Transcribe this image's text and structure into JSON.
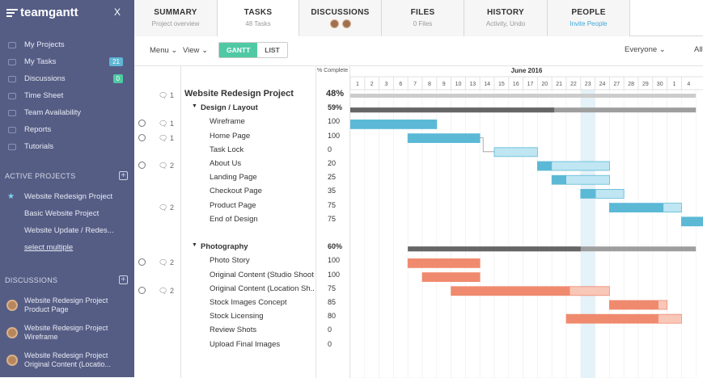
{
  "app": {
    "logo": "teamgantt",
    "close": "X"
  },
  "sidebar": {
    "nav": [
      {
        "label": "My Projects",
        "badge": ""
      },
      {
        "label": "My Tasks",
        "badge": "21"
      },
      {
        "label": "Discussions",
        "badge": "0"
      },
      {
        "label": "Time Sheet",
        "badge": ""
      },
      {
        "label": "Team Availability",
        "badge": ""
      },
      {
        "label": "Reports",
        "badge": ""
      },
      {
        "label": "Tutorials",
        "badge": ""
      }
    ],
    "active_projects_heading": "ACTIVE PROJECTS",
    "projects": [
      "Website Redesign Project",
      "Basic Website Project",
      "Website Update / Redes..."
    ],
    "select_multiple": "select multiple",
    "discussions_heading": "DISCUSSIONS",
    "discussions": [
      {
        "project": "Website Redesign Project",
        "topic": "Product Page"
      },
      {
        "project": "Website Redesign Project",
        "topic": "Wireframe"
      },
      {
        "project": "Website Redesign Project",
        "topic": "Original Content (Locatio..."
      }
    ]
  },
  "tabs": [
    {
      "title": "SUMMARY",
      "sub": "Project overview"
    },
    {
      "title": "TASKS",
      "sub": "48 Tasks"
    },
    {
      "title": "DISCUSSIONS",
      "sub": ""
    },
    {
      "title": "FILES",
      "sub": "0 Files"
    },
    {
      "title": "HISTORY",
      "sub": "Activity, Undo"
    },
    {
      "title": "PEOPLE",
      "sub": "Invite People"
    }
  ],
  "toolbar": {
    "menu": "Menu",
    "view": "View",
    "gantt": "GANTT",
    "list": "LIST",
    "everyone": "Everyone",
    "all": "All"
  },
  "grid": {
    "pct_header": "% Complete",
    "month": "June 2016",
    "days": [
      "1",
      "2",
      "3",
      "6",
      "7",
      "8",
      "9",
      "10",
      "13",
      "14",
      "15",
      "16",
      "17",
      "20",
      "21",
      "22",
      "23",
      "24",
      "27",
      "28",
      "29",
      "30",
      "1",
      "4"
    ],
    "today_index": 16,
    "rows": [
      {
        "name": "Website Redesign Project",
        "pct": "48%",
        "level": 0,
        "comments": "1",
        "clock": false
      },
      {
        "name": "Design / Layout",
        "pct": "59%",
        "level": 1,
        "comments": "",
        "clock": false
      },
      {
        "name": "Wireframe",
        "pct": "100",
        "level": 2,
        "comments": "1",
        "clock": true
      },
      {
        "name": "Home Page",
        "pct": "100",
        "level": 2,
        "comments": "1",
        "clock": true
      },
      {
        "name": "Task Lock",
        "pct": "0",
        "level": 2,
        "comments": "",
        "clock": false
      },
      {
        "name": "About Us",
        "pct": "20",
        "level": 2,
        "comments": "2",
        "clock": true
      },
      {
        "name": "Landing Page",
        "pct": "25",
        "level": 2,
        "comments": "",
        "clock": false
      },
      {
        "name": "Checkout Page",
        "pct": "35",
        "level": 2,
        "comments": "",
        "clock": false
      },
      {
        "name": "Product Page",
        "pct": "75",
        "level": 2,
        "comments": "2",
        "clock": false
      },
      {
        "name": "End of Design",
        "pct": "75",
        "level": 2,
        "comments": "",
        "clock": false
      },
      {
        "name": "",
        "pct": "",
        "level": 2,
        "comments": "",
        "clock": false
      },
      {
        "name": "Photography",
        "pct": "60%",
        "level": 1,
        "comments": "",
        "clock": false
      },
      {
        "name": "Photo Story",
        "pct": "100",
        "level": 2,
        "comments": "2",
        "clock": true
      },
      {
        "name": "Original Content (Studio Shoot)",
        "pct": "100",
        "level": 2,
        "comments": "",
        "clock": false
      },
      {
        "name": "Original Content (Location Sh...",
        "pct": "75",
        "level": 2,
        "comments": "2",
        "clock": true
      },
      {
        "name": "Stock Images Concept",
        "pct": "85",
        "level": 2,
        "comments": "",
        "clock": false
      },
      {
        "name": "Stock Licensing",
        "pct": "80",
        "level": 2,
        "comments": "",
        "clock": false
      },
      {
        "name": "Review Shots",
        "pct": "0",
        "level": 2,
        "comments": "",
        "clock": false
      },
      {
        "name": "Upload Final Images",
        "pct": "0",
        "level": 2,
        "comments": "",
        "clock": false
      }
    ],
    "bars": [
      {
        "row": 0,
        "start": 0,
        "end": 24,
        "pct": 48,
        "kind": "summary"
      },
      {
        "row": 1,
        "start": 0,
        "end": 24,
        "pct": 59,
        "kind": "group"
      },
      {
        "row": 2,
        "start": 0,
        "end": 6,
        "pct": 100,
        "kind": "blue"
      },
      {
        "row": 3,
        "start": 4,
        "end": 9,
        "pct": 100,
        "kind": "blue"
      },
      {
        "row": 4,
        "start": 10,
        "end": 13,
        "pct": 0,
        "kind": "blue"
      },
      {
        "row": 5,
        "start": 13,
        "end": 18,
        "pct": 20,
        "kind": "blue"
      },
      {
        "row": 6,
        "start": 14,
        "end": 18,
        "pct": 25,
        "kind": "blue"
      },
      {
        "row": 7,
        "start": 16,
        "end": 19,
        "pct": 35,
        "kind": "blue"
      },
      {
        "row": 8,
        "start": 18,
        "end": 23,
        "pct": 75,
        "kind": "blue"
      },
      {
        "row": 9,
        "start": 23,
        "end": 25,
        "pct": 75,
        "kind": "blue"
      },
      {
        "row": 11,
        "start": 4,
        "end": 24,
        "pct": 60,
        "kind": "group"
      },
      {
        "row": 12,
        "start": 4,
        "end": 9,
        "pct": 100,
        "kind": "red"
      },
      {
        "row": 13,
        "start": 5,
        "end": 9,
        "pct": 100,
        "kind": "red"
      },
      {
        "row": 14,
        "start": 7,
        "end": 18,
        "pct": 75,
        "kind": "red"
      },
      {
        "row": 15,
        "start": 18,
        "end": 22,
        "pct": 85,
        "kind": "red"
      },
      {
        "row": 16,
        "start": 15,
        "end": 23,
        "pct": 80,
        "kind": "red"
      }
    ]
  },
  "colors": {
    "blue": "#5bb9d6",
    "blue_light": "#bfe6f2",
    "red": "#f08a6e",
    "red_light": "#f8c7b8",
    "group": "#666666",
    "summary": "#cccccc"
  }
}
